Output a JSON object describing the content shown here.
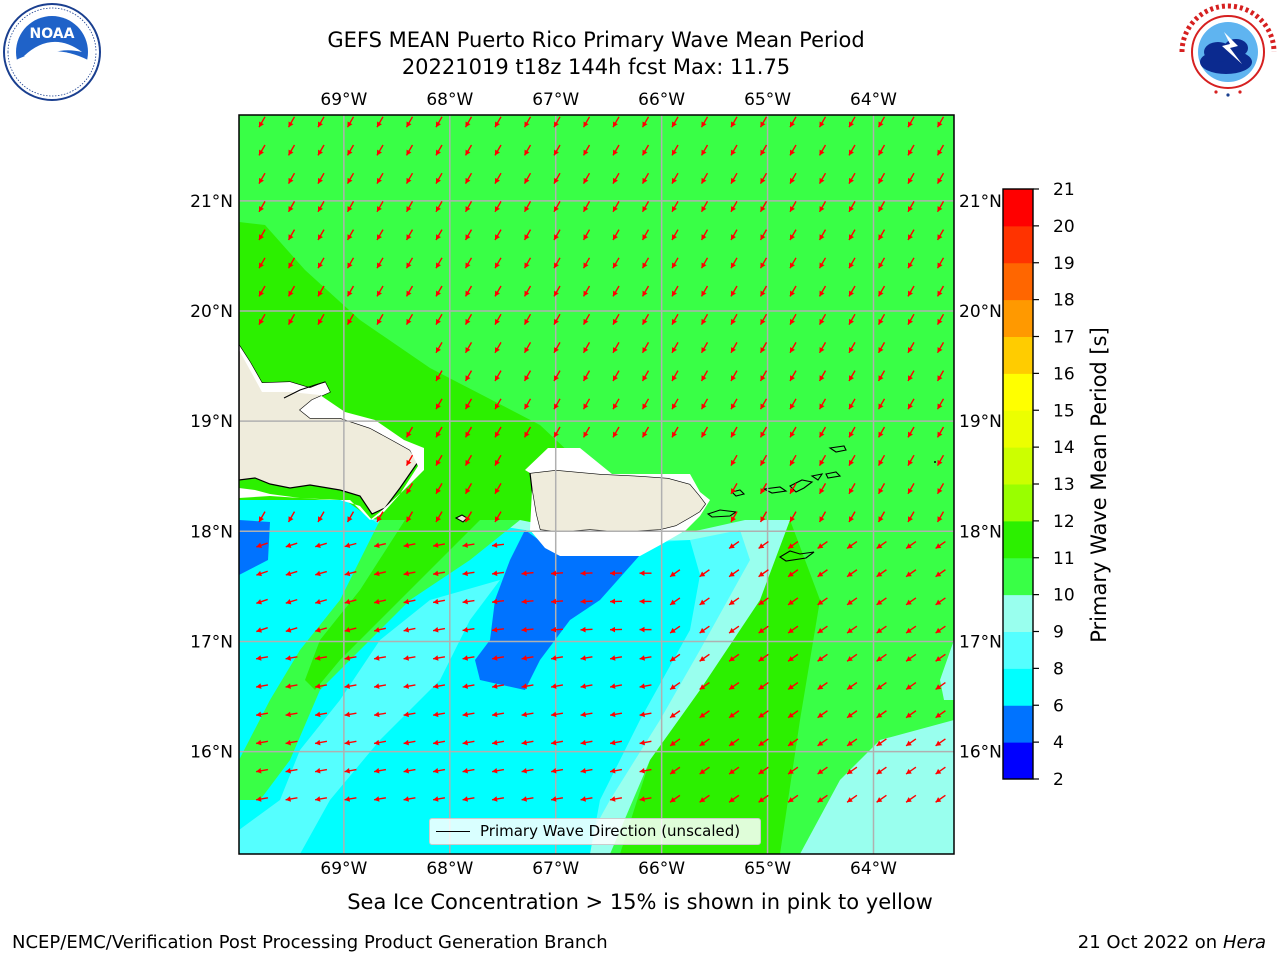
{
  "title": {
    "line1": "GEFS MEAN Puerto Rico Primary Wave Mean Period",
    "line2": "20221019 t18z 144h fcst   Max: 11.75"
  },
  "logos": {
    "noaa": {
      "icon": "noaa-logo",
      "text": "NOAA",
      "ring_text": "NATIONAL OCEANIC AND ATMOSPHERIC ADMINISTRATION · U.S. DEPARTMENT OF COMMERCE"
    },
    "nws": {
      "icon": "nws-logo",
      "ring_text": "NATIONAL WEATHER SERVICE"
    }
  },
  "map": {
    "lon_labels": [
      "69°W",
      "68°W",
      "67°W",
      "66°W",
      "65°W",
      "64°W"
    ],
    "lat_labels": [
      "21°N",
      "20°N",
      "19°N",
      "18°N",
      "17°N",
      "16°N"
    ],
    "lon_values": [
      -69,
      -68,
      -67,
      -66,
      -65,
      -64
    ],
    "lat_values": [
      21,
      20,
      19,
      18,
      17,
      16
    ],
    "lon_range": [
      -69.99,
      -63.24
    ],
    "lat_range": [
      15.07,
      21.78
    ],
    "grid": true,
    "arrow_color": "#ff0000",
    "land_color": "#efecdc"
  },
  "colorbar": {
    "title": "Primary Wave Mean Period [s]",
    "ticks": [
      "2",
      "4",
      "6",
      "8",
      "9",
      "10",
      "11",
      "12",
      "13",
      "14",
      "15",
      "16",
      "17",
      "18",
      "19",
      "20",
      "21"
    ],
    "colors": [
      "#0000ff",
      "#0073ff",
      "#00ffff",
      "#55ffff",
      "#99ffee",
      "#39ff46",
      "#2cf000",
      "#99ff00",
      "#ccff00",
      "#ecff00",
      "#ffff00",
      "#ffcc00",
      "#ff9900",
      "#ff6600",
      "#ff3300",
      "#ff0000"
    ]
  },
  "legend": {
    "label": "Primary Wave Direction (unscaled)"
  },
  "caption": "Sea Ice Concentration > 15% is shown in pink to yellow",
  "footer": {
    "left": "NCEP/EMC/Verification Post Processing Product Generation Branch",
    "date": "21 Oct 2022 on ",
    "host": "Hera"
  }
}
